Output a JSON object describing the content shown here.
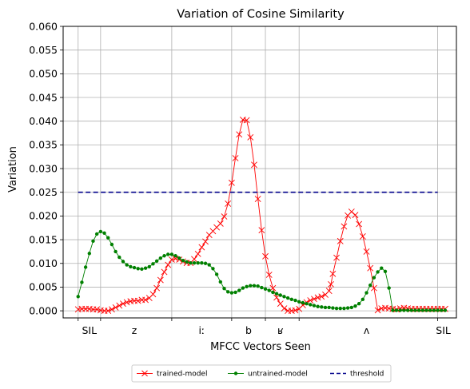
{
  "chart_data": {
    "type": "line",
    "title": "Variation of Cosine Similarity",
    "xlabel": "MFCC Vectors Seen",
    "ylabel": "Variation",
    "ylim": [
      -0.0015,
      0.06
    ],
    "xlim": [
      -4,
      101
    ],
    "yticks": [
      "0.000",
      "0.005",
      "0.010",
      "0.015",
      "0.020",
      "0.025",
      "0.030",
      "0.035",
      "0.040",
      "0.045",
      "0.050",
      "0.055",
      "0.060"
    ],
    "ytick_values": [
      0,
      0.005,
      0.01,
      0.015,
      0.02,
      0.025,
      0.03,
      0.035,
      0.04,
      0.045,
      0.05,
      0.055,
      0.06
    ],
    "xtick_positions": [
      0,
      6,
      25,
      41,
      50,
      59,
      96
    ],
    "xtick_labels": [
      {
        "text": "SIL",
        "x": 3
      },
      {
        "text": "z",
        "x": 15
      },
      {
        "text": "iː",
        "x": 33
      },
      {
        "text": "b",
        "x": 45.5
      },
      {
        "text": "ʁ",
        "x": 54
      },
      {
        "text": "ʌ",
        "x": 77
      },
      {
        "text": "SIL",
        "x": 97.5
      }
    ],
    "grid": true,
    "legend_position": "bottom-center-outside",
    "series": [
      {
        "name": "trained-model",
        "color": "#ff0000",
        "marker": "x",
        "x": [
          0,
          1,
          2,
          3,
          4,
          5,
          6,
          7,
          8,
          9,
          10,
          11,
          12,
          13,
          14,
          15,
          16,
          17,
          18,
          19,
          20,
          21,
          22,
          23,
          24,
          25,
          26,
          27,
          28,
          29,
          30,
          31,
          32,
          33,
          34,
          35,
          36,
          37,
          38,
          39,
          40,
          41,
          42,
          43,
          44,
          45,
          46,
          47,
          48,
          49,
          50,
          51,
          52,
          53,
          54,
          55,
          56,
          57,
          58,
          59,
          60,
          61,
          62,
          63,
          64,
          65,
          66,
          67,
          67.5,
          68,
          69,
          70,
          71,
          72,
          73,
          74,
          75,
          76,
          77,
          78,
          79,
          80,
          81,
          82,
          83,
          84,
          85,
          86,
          87,
          88,
          89,
          90,
          91,
          92,
          93,
          94,
          95,
          96,
          97,
          98
        ],
        "values": [
          0.0003,
          0.0004,
          0.0004,
          0.0004,
          0.0003,
          0.0003,
          0.0001,
          0.0,
          0.0,
          0.0003,
          0.0007,
          0.0011,
          0.0015,
          0.0018,
          0.002,
          0.0021,
          0.0021,
          0.0023,
          0.0023,
          0.0027,
          0.0035,
          0.0048,
          0.0065,
          0.0082,
          0.0097,
          0.0108,
          0.011,
          0.0108,
          0.0104,
          0.0101,
          0.0101,
          0.0109,
          0.012,
          0.0134,
          0.0146,
          0.016,
          0.0168,
          0.0176,
          0.0184,
          0.0199,
          0.0226,
          0.027,
          0.0322,
          0.0372,
          0.0403,
          0.0402,
          0.0366,
          0.0308,
          0.0236,
          0.017,
          0.0115,
          0.0076,
          0.0048,
          0.0028,
          0.0015,
          0.0005,
          0.0,
          0.0,
          0.0001,
          0.0004,
          0.0012,
          0.0018,
          0.0022,
          0.0025,
          0.0028,
          0.003,
          0.0034,
          0.0042,
          0.0056,
          0.0078,
          0.0112,
          0.0147,
          0.0178,
          0.0201,
          0.0209,
          0.0202,
          0.0183,
          0.0157,
          0.0125,
          0.009,
          0.0048,
          0.0001,
          0.0005,
          0.0006,
          0.0005,
          0.0004,
          0.0003,
          0.0005,
          0.0006,
          0.0005,
          0.0004,
          0.0004,
          0.0004,
          0.0004,
          0.0004,
          0.0004,
          0.0004,
          0.0004,
          0.0004,
          0.0004
        ],
        "_note": ""
      },
      {
        "name": "untrained-model",
        "color": "#008000",
        "marker": "o",
        "x": [
          0,
          1,
          2,
          3,
          4,
          5,
          6,
          7,
          8,
          9,
          10,
          11,
          12,
          13,
          14,
          15,
          16,
          17,
          18,
          19,
          20,
          21,
          22,
          23,
          24,
          25,
          26,
          27,
          28,
          29,
          30,
          31,
          32,
          33,
          34,
          35,
          36,
          37,
          38,
          39,
          40,
          41,
          42,
          43,
          44,
          45,
          46,
          47,
          48,
          49,
          50,
          51,
          52,
          53,
          54,
          55,
          56,
          57,
          58,
          59,
          60,
          61,
          62,
          63,
          64,
          65,
          66,
          67,
          68,
          69,
          70,
          71,
          72,
          73,
          74,
          75,
          76,
          77,
          78,
          79,
          80,
          81,
          82,
          83,
          84,
          85,
          86,
          87,
          88,
          89,
          90,
          91,
          92,
          93,
          94,
          95,
          96,
          97,
          98
        ],
        "values": [
          0.003,
          0.006,
          0.0092,
          0.0121,
          0.0147,
          0.0162,
          0.0167,
          0.0164,
          0.0154,
          0.014,
          0.0125,
          0.0113,
          0.0104,
          0.0097,
          0.0093,
          0.0091,
          0.0089,
          0.0088,
          0.009,
          0.0093,
          0.0099,
          0.0105,
          0.0111,
          0.0116,
          0.0119,
          0.0119,
          0.0116,
          0.0111,
          0.0106,
          0.0103,
          0.0101,
          0.0101,
          0.0101,
          0.0101,
          0.01,
          0.0097,
          0.0089,
          0.0077,
          0.0061,
          0.0047,
          0.004,
          0.0038,
          0.0039,
          0.0043,
          0.0048,
          0.0051,
          0.0053,
          0.0053,
          0.0052,
          0.0049,
          0.0046,
          0.0043,
          0.0039,
          0.0036,
          0.0033,
          0.003,
          0.0027,
          0.0024,
          0.0022,
          0.0019,
          0.0017,
          0.0015,
          0.0013,
          0.0011,
          0.0009,
          0.0008,
          0.0007,
          0.0007,
          0.0006,
          0.0005,
          0.0005,
          0.0005,
          0.0006,
          0.0007,
          0.001,
          0.0015,
          0.0024,
          0.0038,
          0.0054,
          0.007,
          0.0082,
          0.009,
          0.0083,
          0.0048,
          0.0001,
          0.0001,
          0.0001,
          0.0001,
          0.0001,
          0.0001,
          0.0001,
          0.0001,
          0.0001,
          0.0001,
          0.0001,
          0.0001,
          0.0001,
          0.0001,
          0.0001
        ]
      },
      {
        "name": "threshold",
        "color": "#00008b",
        "style": "dashed",
        "x": [
          0,
          96
        ],
        "values": [
          0.025,
          0.025
        ]
      }
    ]
  }
}
